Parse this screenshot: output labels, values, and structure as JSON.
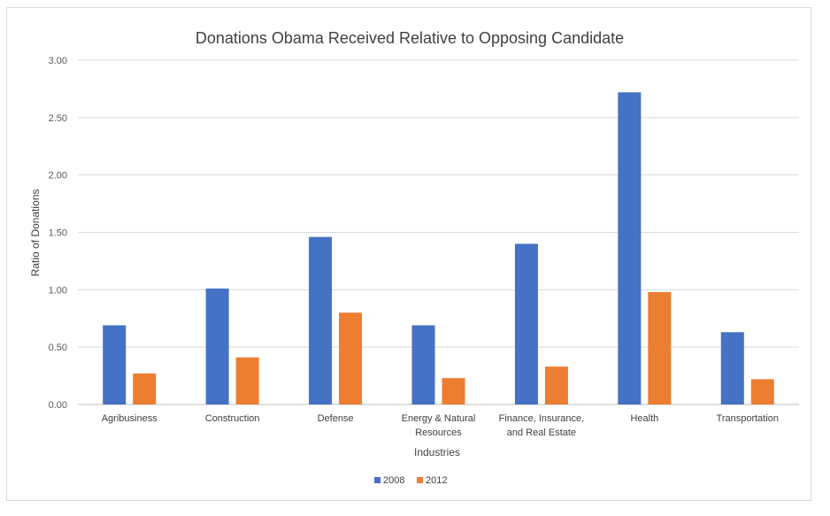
{
  "chart_data": {
    "type": "bar",
    "title": "Donations Obama Received Relative to Opposing Candidate",
    "xlabel": "Industries",
    "ylabel": "Ratio of Donations",
    "ylim": [
      0,
      3
    ],
    "yticks": [
      "0.00",
      "0.50",
      "1.00",
      "1.50",
      "2.00",
      "2.50",
      "3.00"
    ],
    "categories": [
      [
        "Agribusiness"
      ],
      [
        "Construction"
      ],
      [
        "Defense"
      ],
      [
        "Energy & Natural",
        "Resources"
      ],
      [
        "Finance, Insurance,",
        "and Real Estate"
      ],
      [
        "Health"
      ],
      [
        "Transportation"
      ]
    ],
    "series": [
      {
        "name": "2008",
        "color": "#4472c4",
        "values": [
          0.69,
          1.01,
          1.46,
          0.69,
          1.4,
          2.72,
          0.63
        ]
      },
      {
        "name": "2012",
        "color": "#ed7d31",
        "values": [
          0.27,
          0.41,
          0.8,
          0.23,
          0.33,
          0.98,
          0.22
        ]
      }
    ],
    "grid": true,
    "legend_position": "bottom"
  }
}
